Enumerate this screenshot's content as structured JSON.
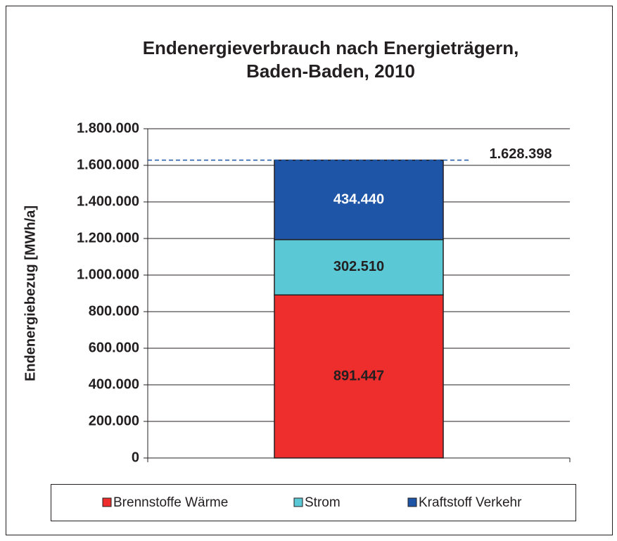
{
  "chart_data": {
    "type": "bar",
    "stacked": true,
    "title": [
      "Endenergieverbrauch nach Energieträgern,",
      "Baden-Baden, 2010"
    ],
    "ylabel": "Endenergiebezug [MWh/a]",
    "categories": [
      null
    ],
    "series": [
      {
        "name": "Brennstoffe Wärme",
        "color": "#ee2e2c",
        "values": [
          891447
        ],
        "value_labels": [
          "891.447"
        ],
        "label_color": "#231f20"
      },
      {
        "name": "Strom",
        "color": "#5bc8d5",
        "values": [
          302510
        ],
        "value_labels": [
          "302.510"
        ],
        "label_color": "#231f20"
      },
      {
        "name": "Kraftstoff Verkehr",
        "color": "#1f55a6",
        "values": [
          434440
        ],
        "value_labels": [
          "434.440"
        ],
        "label_color": "#ffffff"
      }
    ],
    "total": {
      "value": 1628398,
      "label": "1.628.398"
    },
    "ylim": [
      0,
      1800000
    ],
    "yticks": [
      0,
      {
        "value": 200000,
        "label": "200.000"
      },
      {
        "value": 400000,
        "label": "400.000"
      },
      {
        "value": 600000,
        "label": "600.000"
      },
      {
        "value": 800000,
        "label": "800.000"
      },
      {
        "value": 1000000,
        "label": "1.000.000"
      },
      {
        "value": 1200000,
        "label": "1.200.000"
      },
      {
        "value": 1400000,
        "label": "1.400.000"
      },
      {
        "value": 1600000,
        "label": "1.600.000"
      },
      {
        "value": 1800000,
        "label": "1.800.000"
      }
    ],
    "grid": true,
    "legend": "bottom"
  }
}
